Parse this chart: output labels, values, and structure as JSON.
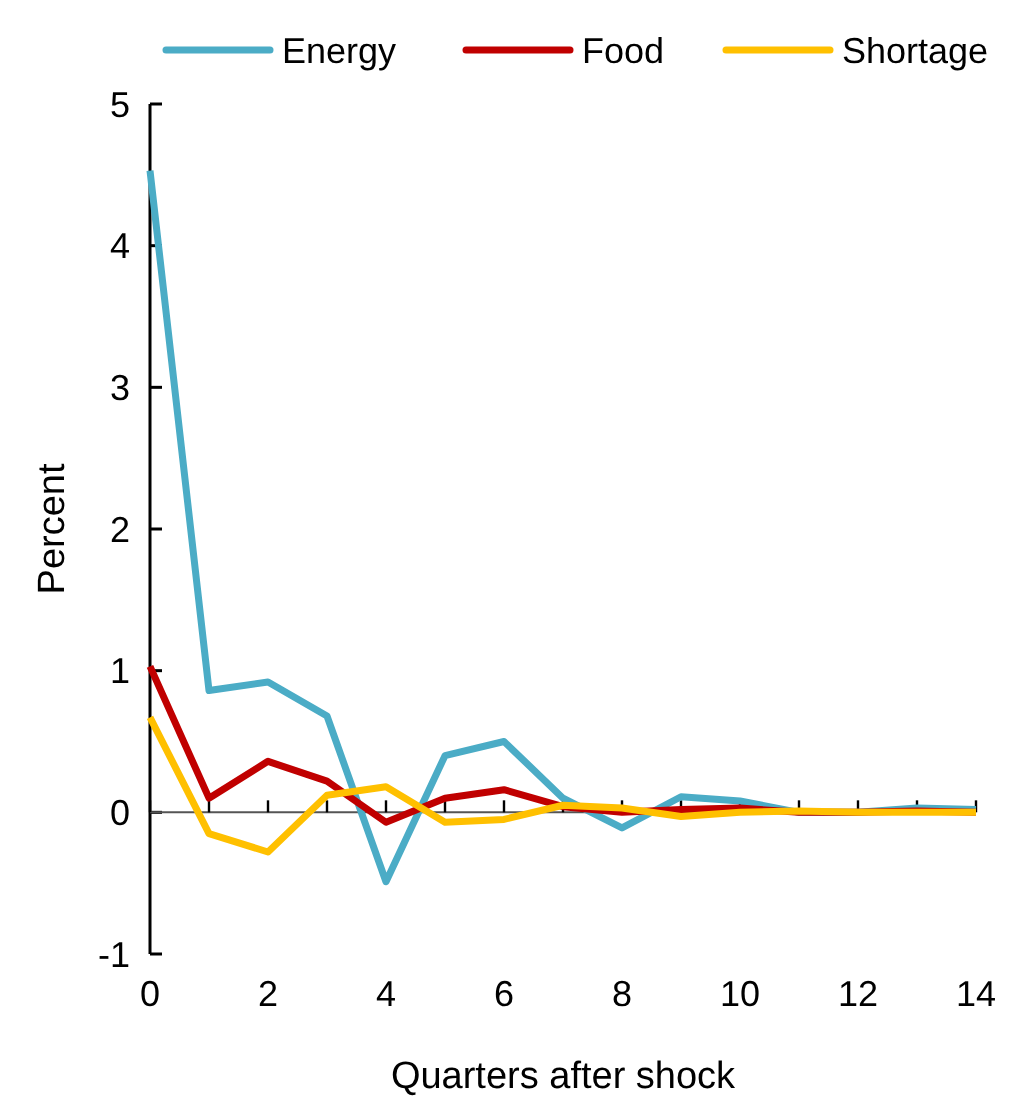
{
  "chart_data": {
    "type": "line",
    "xlabel": "Quarters after shock",
    "ylabel": "Percent",
    "legend": "top",
    "marker": "none",
    "line_style": "solid",
    "x": [
      0,
      1,
      2,
      3,
      4,
      5,
      6,
      7,
      8,
      9,
      10,
      11,
      12,
      13,
      14
    ],
    "xlim": [
      0,
      14
    ],
    "xticks": [
      0,
      {
        "value": 1,
        "label": null
      },
      2,
      {
        "value": 3,
        "label": null
      },
      4,
      {
        "value": 5,
        "label": null
      },
      6,
      {
        "value": 7,
        "label": null
      },
      8,
      {
        "value": 9,
        "label": null
      },
      10,
      {
        "value": 11,
        "label": null
      },
      12,
      {
        "value": 13,
        "label": null
      },
      14
    ],
    "ylim": [
      -1,
      5
    ],
    "yticks": [
      -1,
      0,
      1,
      2,
      3,
      4,
      5
    ],
    "series": [
      {
        "name": "Energy",
        "color": "#4bacc6",
        "values": [
          4.53,
          0.86,
          0.92,
          0.68,
          -0.49,
          0.4,
          0.5,
          0.1,
          -0.11,
          0.11,
          0.08,
          0,
          0,
          0.03,
          0.02
        ]
      },
      {
        "name": "Food",
        "color": "#c00000",
        "values": [
          1.03,
          0.1,
          0.36,
          0.22,
          -0.07,
          0.1,
          0.16,
          0.04,
          0,
          0.02,
          0.03,
          0,
          0,
          0.01,
          0
        ]
      },
      {
        "name": "Shortage",
        "color": "#ffc000",
        "values": [
          0.67,
          -0.15,
          -0.28,
          0.12,
          0.18,
          -0.07,
          -0.05,
          0.05,
          0.03,
          -0.03,
          0,
          0.01,
          0,
          0,
          0
        ]
      }
    ]
  }
}
